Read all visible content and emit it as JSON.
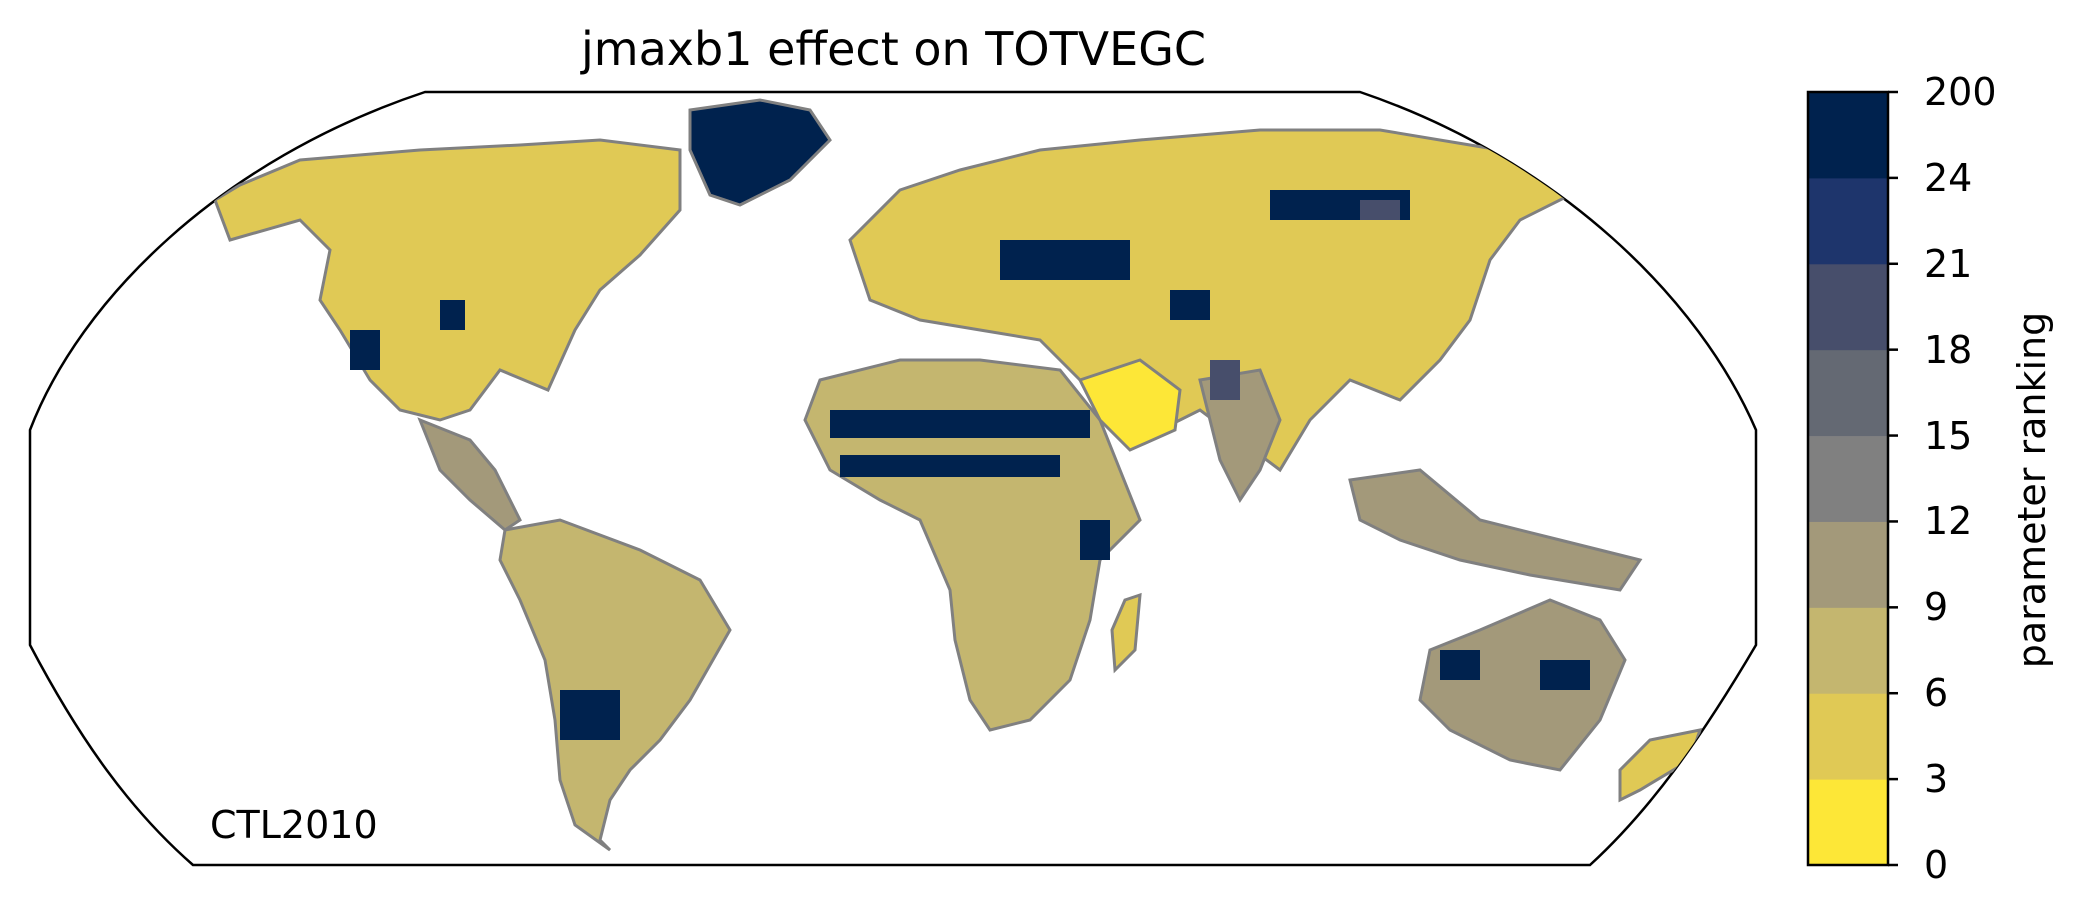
{
  "title": "jmaxb1 effect on TOTVEGC",
  "corner_label": "CTL2010",
  "colorbar": {
    "label": "parameter ranking",
    "ticks": [
      "0",
      "3",
      "6",
      "9",
      "12",
      "15",
      "18",
      "21",
      "24",
      "200"
    ],
    "colors": [
      "#fde737",
      "#e0c955",
      "#c4b66f",
      "#a3997a",
      "#808080",
      "#646973",
      "#474e6b",
      "#1e356c",
      "#00224e"
    ]
  },
  "map": {
    "projection": "Robinson",
    "land_classes": [
      "#fde737",
      "#e0c955",
      "#c4b66f",
      "#a3997a",
      "#808080",
      "#646973",
      "#474e6b",
      "#1e356c",
      "#00224e"
    ],
    "coastline_color": "#808080"
  }
}
